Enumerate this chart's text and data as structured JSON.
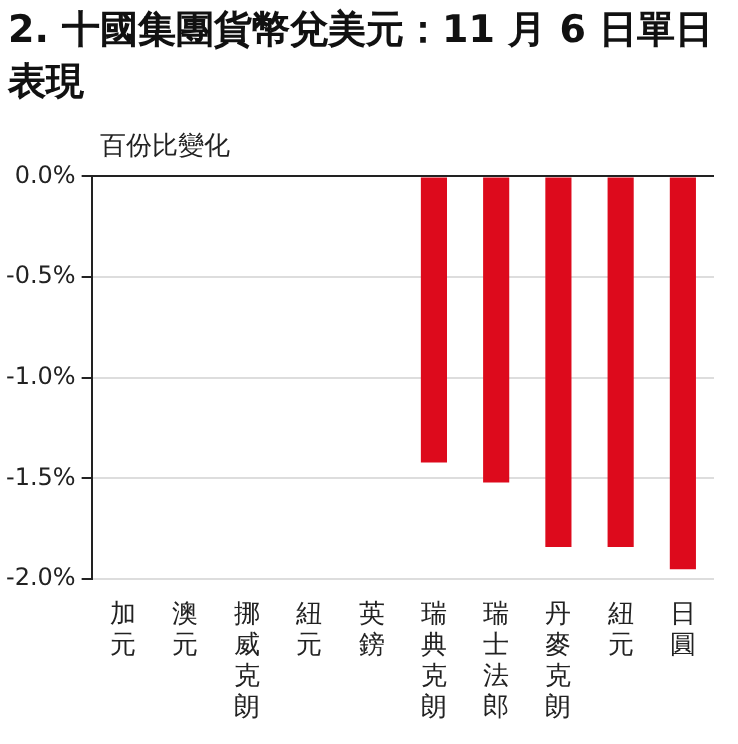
{
  "chart_data": {
    "type": "bar",
    "title": "2. 十國集團貨幣兌美元：11 月 6 日單日表現",
    "ylabel": "百份比變化",
    "categories": [
      "加元",
      "澳元",
      "挪威克朗",
      "紐元",
      "英鎊",
      "瑞典克朗",
      "瑞士法郎",
      "丹麥克朗",
      "紐元",
      "日圓"
    ],
    "values": [
      null,
      null,
      null,
      null,
      null,
      -1.42,
      -1.52,
      -1.84,
      -1.84,
      -1.95
    ],
    "color": "#dd0a1c",
    "ylim": [
      -2,
      0
    ],
    "yticks": [
      {
        "value": -2,
        "label": "-2.0%"
      },
      {
        "value": -1.5,
        "label": "-1.5%"
      },
      {
        "value": -1,
        "label": "-1.0%"
      },
      {
        "value": -0.5,
        "label": "-0.5%"
      },
      {
        "value": 0,
        "label": "0.0%"
      }
    ],
    "grid": "y",
    "legend": false
  }
}
